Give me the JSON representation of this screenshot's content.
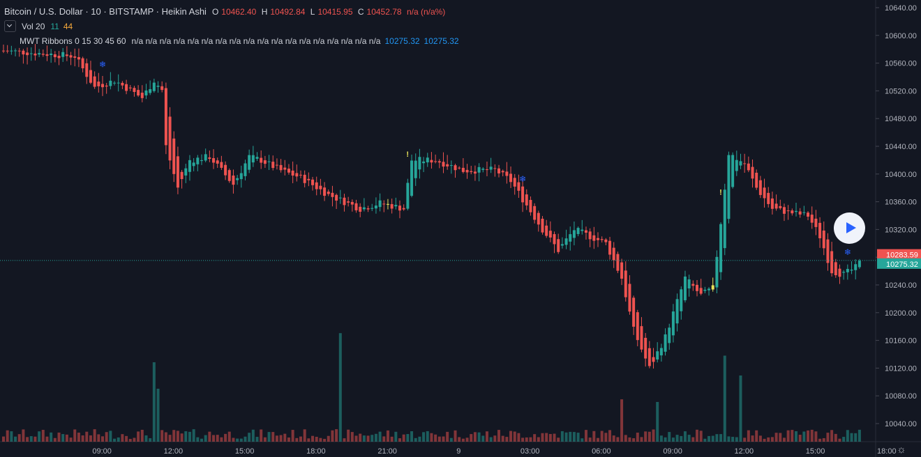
{
  "header": {
    "symbol": "Bitcoin / U.S. Dollar · 10 · BITSTAMP · Heikin Ashi",
    "o_key": "O",
    "o_val": "10462.40",
    "h_key": "H",
    "h_val": "10492.84",
    "l_key": "L",
    "l_val": "10415.95",
    "c_key": "C",
    "c_val": "10452.78",
    "change": "n/a (n/a%)"
  },
  "vol_indicator": {
    "label": "Vol 20",
    "v1": "11",
    "v2": "44"
  },
  "ribbons": {
    "label": "MWT Ribbons 0 15 30 45 60",
    "na_values": "n/a n/a n/a n/a n/a n/a n/a n/a n/a n/a n/a n/a n/a n/a n/a n/a n/a n/a",
    "v1": "10275.32",
    "v2": "10275.32"
  },
  "price_tags": {
    "upper": "10283.59",
    "current": "10275.32"
  },
  "colors": {
    "up": "#26a69a",
    "down": "#ef5350",
    "bg": "#131722",
    "axis_text": "#b2b5be",
    "bar_yellow": "#e8e35a",
    "ema_line": "#26a69a"
  },
  "icons": [
    "play-icon",
    "settings-gear-icon",
    "collapse-chevron-icon",
    "snowflake-marker-icon",
    "exclamation-marker-icon"
  ],
  "chart_data": {
    "type": "candlestick",
    "title": "Bitcoin / U.S. Dollar · 10 · BITSTAMP · Heikin Ashi",
    "y_ticks": [
      "10640.00",
      "10600.00",
      "10560.00",
      "10520.00",
      "10480.00",
      "10440.00",
      "10400.00",
      "10360.00",
      "10320.00",
      "10280.00",
      "10240.00",
      "10200.00",
      "10160.00",
      "10120.00",
      "10080.00",
      "10040.00"
    ],
    "y_range": [
      10020,
      10650
    ],
    "x_ticks": [
      "09:00",
      "12:00",
      "15:00",
      "18:00",
      "21:00",
      "9",
      "03:00",
      "06:00",
      "09:00",
      "12:00",
      "15:00",
      "18:00",
      "21:00"
    ],
    "x_tick_slots": [
      12,
      30,
      48,
      66,
      84,
      102,
      120,
      138,
      156,
      174,
      192,
      210,
      228
    ],
    "bar_count": 217,
    "current_price": 10275.32,
    "price_series_knots": [
      [
        0,
        10578
      ],
      [
        18,
        10570
      ],
      [
        23,
        10525
      ],
      [
        28,
        10535
      ],
      [
        35,
        10510
      ],
      [
        38,
        10535
      ],
      [
        40,
        10521
      ],
      [
        41,
        10440
      ],
      [
        44,
        10380
      ],
      [
        47,
        10420
      ],
      [
        52,
        10425
      ],
      [
        58,
        10385
      ],
      [
        62,
        10425
      ],
      [
        65,
        10420
      ],
      [
        70,
        10405
      ],
      [
        75,
        10395
      ],
      [
        82,
        10370
      ],
      [
        90,
        10350
      ],
      [
        95,
        10358
      ],
      [
        101,
        10350
      ],
      [
        103,
        10420
      ],
      [
        109,
        10420
      ],
      [
        116,
        10405
      ],
      [
        124,
        10406
      ],
      [
        128,
        10390
      ],
      [
        132,
        10355
      ],
      [
        136,
        10320
      ],
      [
        140,
        10290
      ],
      [
        144,
        10320
      ],
      [
        148,
        10310
      ],
      [
        152,
        10300
      ],
      [
        156,
        10250
      ],
      [
        159,
        10175
      ],
      [
        163,
        10120
      ],
      [
        167,
        10165
      ],
      [
        172,
        10250
      ],
      [
        176,
        10225
      ],
      [
        179,
        10235
      ],
      [
        181,
        10330
      ],
      [
        183,
        10430
      ],
      [
        187,
        10415
      ],
      [
        190,
        10380
      ],
      [
        194,
        10350
      ],
      [
        198,
        10345
      ],
      [
        203,
        10340
      ],
      [
        206,
        10310
      ],
      [
        209,
        10260
      ],
      [
        212,
        10255
      ],
      [
        215,
        10265
      ],
      [
        217,
        10278
      ]
    ],
    "volume_spikes": [
      [
        38,
        0.6
      ],
      [
        39,
        0.4
      ],
      [
        85,
        0.82
      ],
      [
        156,
        0.32
      ],
      [
        165,
        0.3
      ],
      [
        182,
        0.65
      ],
      [
        186,
        0.5
      ]
    ],
    "markers": [
      {
        "slot": 25,
        "type": "snowflake"
      },
      {
        "slot": 102,
        "type": "exclamation"
      },
      {
        "slot": 131,
        "type": "snowflake"
      },
      {
        "slot": 181,
        "type": "exclamation"
      },
      {
        "slot": 213,
        "type": "snowflake"
      }
    ]
  }
}
